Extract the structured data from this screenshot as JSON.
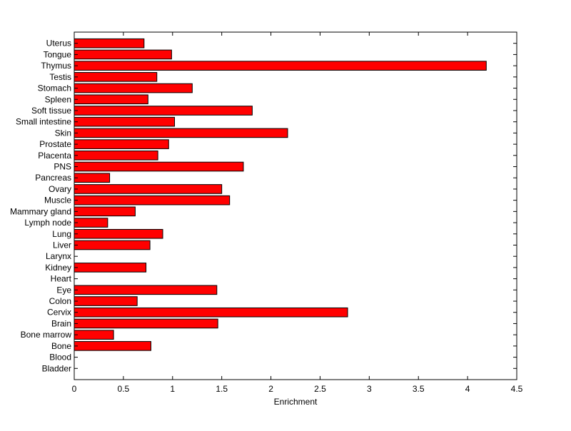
{
  "chart_data": {
    "type": "bar",
    "orientation": "horizontal",
    "title": "",
    "xlabel": "Enrichment",
    "ylabel": "",
    "xlim": [
      0,
      4.5
    ],
    "xticks": [
      0,
      0.5,
      1,
      1.5,
      2,
      2.5,
      3,
      3.5,
      4,
      4.5
    ],
    "xtick_labels": [
      "0",
      "0.5",
      "1",
      "1.5",
      "2",
      "2.5",
      "3",
      "3.5",
      "4",
      "4.5"
    ],
    "grid": false,
    "legend": "none",
    "bar_color": "#ff0000",
    "edge_color": "#000000",
    "categories": [
      "Bladder",
      "Blood",
      "Bone",
      "Bone marrow",
      "Brain",
      "Cervix",
      "Colon",
      "Eye",
      "Heart",
      "Kidney",
      "Larynx",
      "Liver",
      "Lung",
      "Lymph node",
      "Mammary gland",
      "Muscle",
      "Ovary",
      "Pancreas",
      "PNS",
      "Placenta",
      "Prostate",
      "Skin",
      "Small intestine",
      "Soft tissue",
      "Spleen",
      "Stomach",
      "Testis",
      "Thymus",
      "Tongue",
      "Uterus"
    ],
    "values": [
      0,
      0,
      0.78,
      0.4,
      1.46,
      2.78,
      0.64,
      1.45,
      0,
      0.73,
      0,
      0.77,
      0.9,
      0.34,
      0.62,
      1.58,
      1.5,
      0.36,
      1.72,
      0.85,
      0.96,
      2.17,
      1.02,
      1.81,
      0.75,
      1.2,
      0.84,
      4.19,
      0.99,
      0.71
    ]
  }
}
